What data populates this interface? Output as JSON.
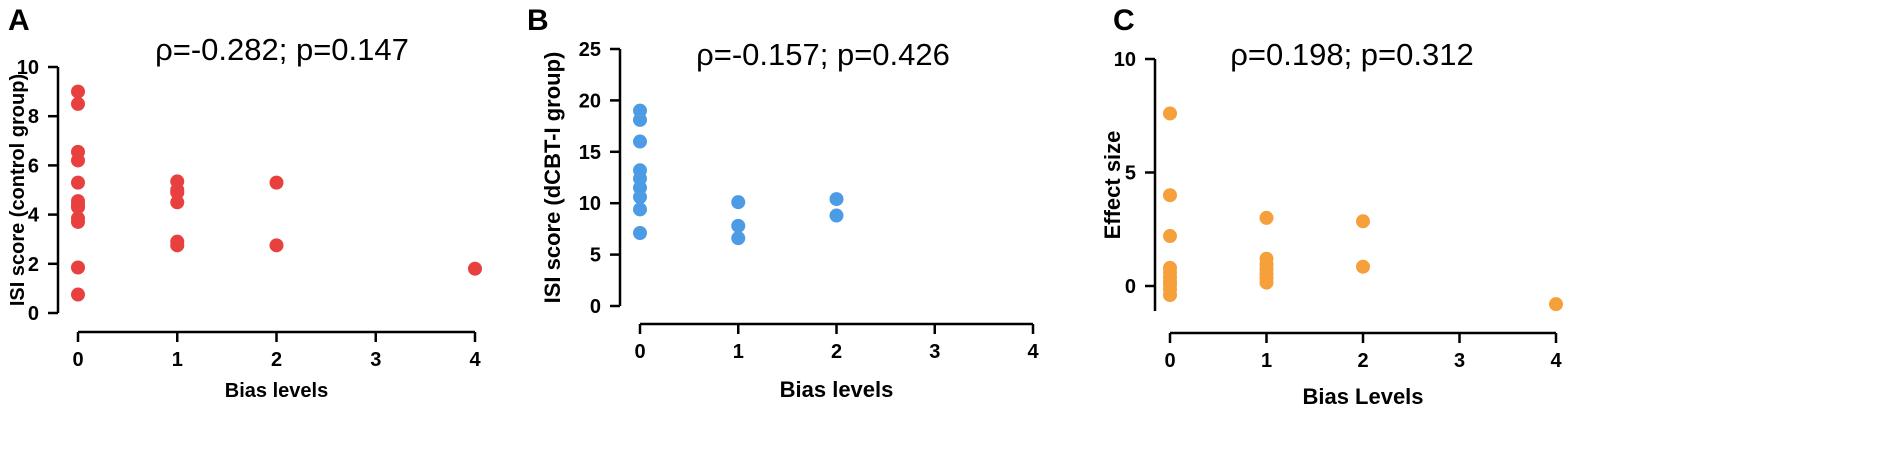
{
  "chart_data": [
    {
      "panel": "A",
      "type": "scatter",
      "annotation": "ρ=-0.282; p=0.147",
      "xlabel": "Bias levels",
      "ylabel": "ISI score (control group)",
      "xlim": [
        0,
        4
      ],
      "ylim": [
        0,
        10
      ],
      "xticks": [
        0,
        1,
        2,
        3,
        4
      ],
      "yticks": [
        0,
        2,
        4,
        6,
        8,
        10
      ],
      "color": "#e8403f",
      "points": [
        {
          "x": 0,
          "y": 9.0
        },
        {
          "x": 0,
          "y": 8.5
        },
        {
          "x": 0,
          "y": 6.55
        },
        {
          "x": 0,
          "y": 6.2
        },
        {
          "x": 0,
          "y": 5.3
        },
        {
          "x": 0,
          "y": 4.55
        },
        {
          "x": 0,
          "y": 4.4
        },
        {
          "x": 0,
          "y": 4.3
        },
        {
          "x": 0,
          "y": 3.85
        },
        {
          "x": 0,
          "y": 3.7
        },
        {
          "x": 0,
          "y": 1.85
        },
        {
          "x": 0,
          "y": 0.75
        },
        {
          "x": 1,
          "y": 5.35
        },
        {
          "x": 1,
          "y": 5.0
        },
        {
          "x": 1,
          "y": 4.9
        },
        {
          "x": 1,
          "y": 4.5
        },
        {
          "x": 1,
          "y": 2.9
        },
        {
          "x": 1,
          "y": 2.75
        },
        {
          "x": 2,
          "y": 5.3
        },
        {
          "x": 2,
          "y": 2.75
        },
        {
          "x": 4,
          "y": 1.8
        }
      ]
    },
    {
      "panel": "B",
      "type": "scatter",
      "annotation": "ρ=-0.157; p=0.426",
      "xlabel": "Bias levels",
      "ylabel": "ISI score (dCBT-I group)",
      "xlim": [
        0,
        4
      ],
      "ylim": [
        0,
        25
      ],
      "xticks": [
        0,
        1,
        2,
        3,
        4
      ],
      "yticks": [
        0,
        5,
        10,
        15,
        20,
        25
      ],
      "color": "#4b9be5",
      "points": [
        {
          "x": 0,
          "y": 19.0
        },
        {
          "x": 0,
          "y": 18.1
        },
        {
          "x": 0,
          "y": 16.0
        },
        {
          "x": 0,
          "y": 13.2
        },
        {
          "x": 0,
          "y": 12.4
        },
        {
          "x": 0,
          "y": 11.5
        },
        {
          "x": 0,
          "y": 10.6
        },
        {
          "x": 0,
          "y": 9.4
        },
        {
          "x": 0,
          "y": 7.1
        },
        {
          "x": 1,
          "y": 10.1
        },
        {
          "x": 1,
          "y": 7.8
        },
        {
          "x": 1,
          "y": 6.6
        },
        {
          "x": 2,
          "y": 10.4
        },
        {
          "x": 2,
          "y": 8.8
        }
      ]
    },
    {
      "panel": "C",
      "type": "scatter",
      "annotation": "ρ=0.198; p=0.312",
      "xlabel": "Bias Levels",
      "ylabel": "Effect size",
      "xlim": [
        0,
        4
      ],
      "ylim": [
        -1,
        10
      ],
      "xticks": [
        0,
        1,
        2,
        3,
        4
      ],
      "yticks": [
        0,
        5,
        10
      ],
      "color": "#f5a03b",
      "points": [
        {
          "x": 0,
          "y": 7.6
        },
        {
          "x": 0,
          "y": 4.0
        },
        {
          "x": 0,
          "y": 2.2
        },
        {
          "x": 0,
          "y": 0.8
        },
        {
          "x": 0,
          "y": 0.6
        },
        {
          "x": 0,
          "y": 0.4
        },
        {
          "x": 0,
          "y": 0.2
        },
        {
          "x": 0,
          "y": 0.05
        },
        {
          "x": 0,
          "y": -0.15
        },
        {
          "x": 0,
          "y": -0.4
        },
        {
          "x": 1,
          "y": 3.0
        },
        {
          "x": 1,
          "y": 1.2
        },
        {
          "x": 1,
          "y": 0.95
        },
        {
          "x": 1,
          "y": 0.75
        },
        {
          "x": 1,
          "y": 0.55
        },
        {
          "x": 1,
          "y": 0.35
        },
        {
          "x": 1,
          "y": 0.15
        },
        {
          "x": 2,
          "y": 2.85
        },
        {
          "x": 2,
          "y": 0.85
        },
        {
          "x": 4,
          "y": -0.8
        }
      ]
    }
  ]
}
